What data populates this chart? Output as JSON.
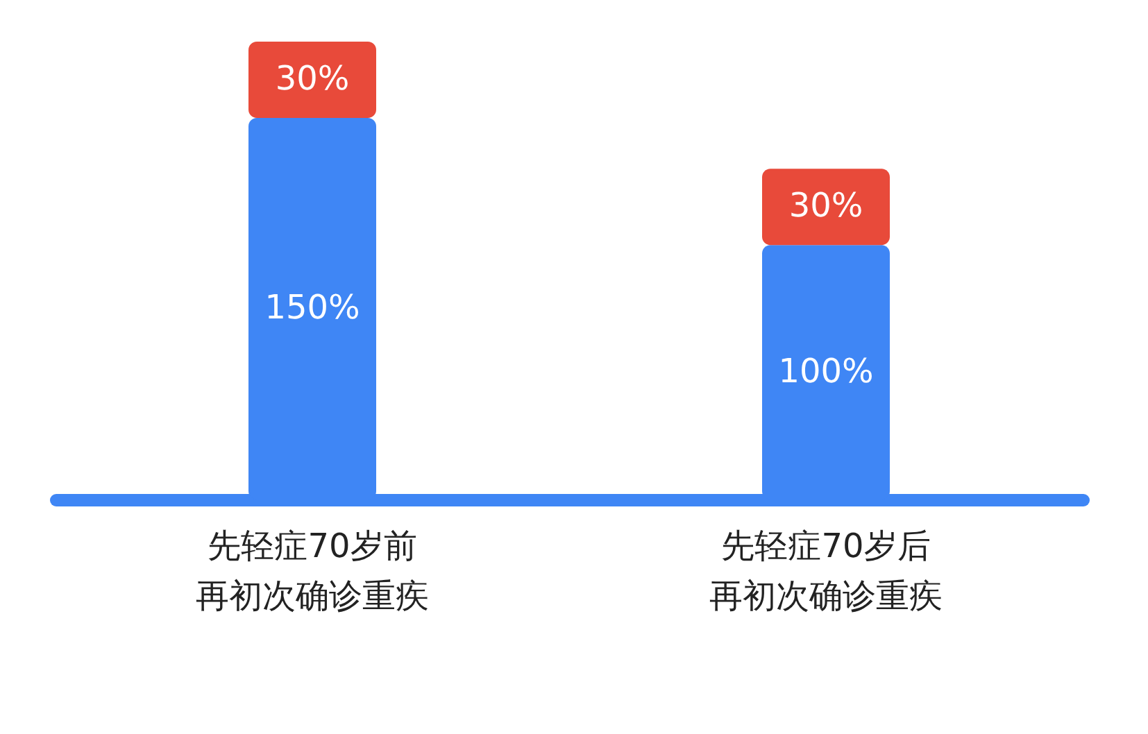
{
  "chart_data": {
    "type": "bar",
    "stacked": true,
    "grid": false,
    "categories": [
      "先轻症70岁前再初次确诊重疾",
      "先轻症70岁后再初次确诊重疾"
    ],
    "series": [
      {
        "color": "#3f86f5",
        "values": [
          150,
          100
        ],
        "value_labels": [
          "150%",
          "100%"
        ]
      },
      {
        "color": "#e84a3a",
        "values": [
          30,
          30
        ],
        "value_labels": [
          "30%",
          "30%"
        ]
      }
    ]
  }
}
